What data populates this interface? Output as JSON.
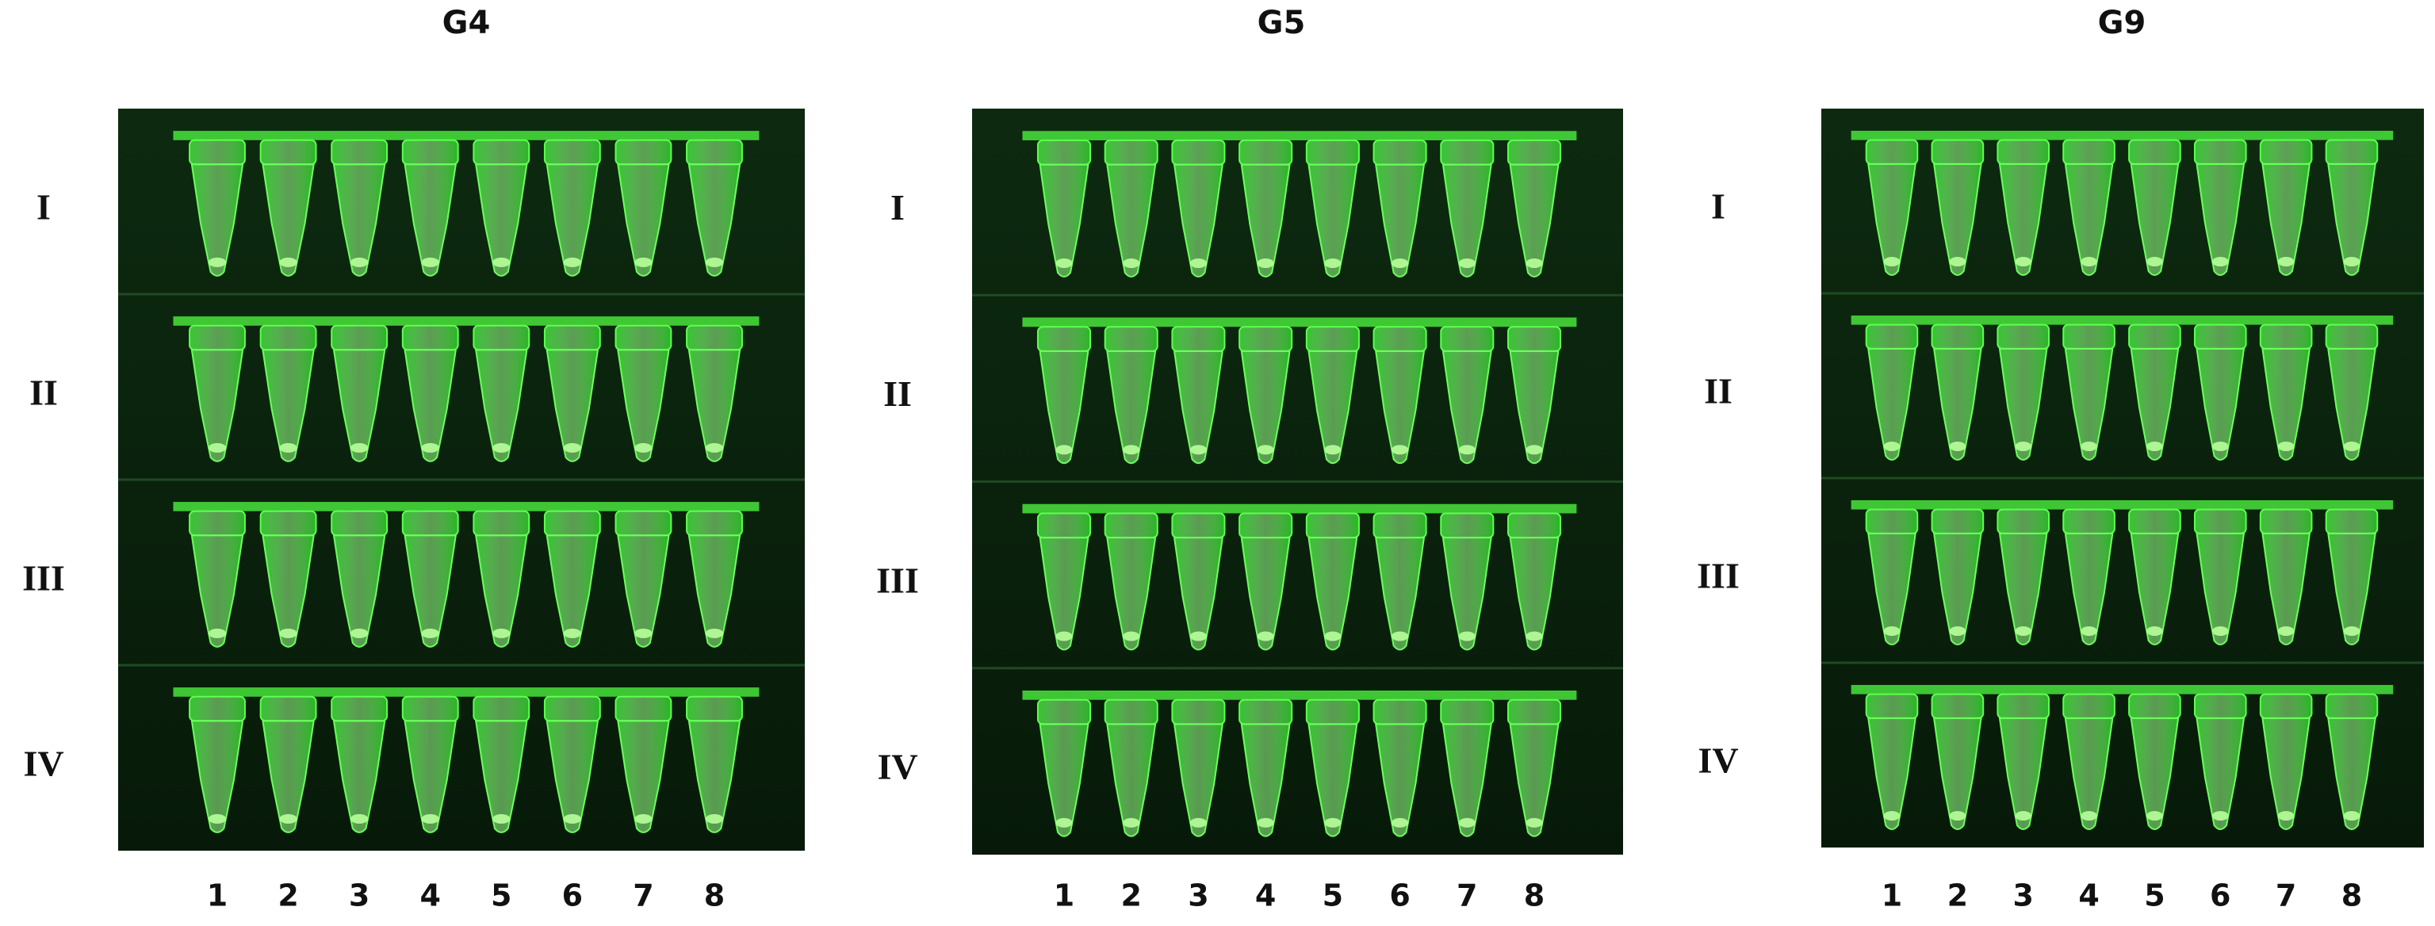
{
  "panels": [
    {
      "title": "G4",
      "rows": [
        "I",
        "II",
        "III",
        "IV"
      ],
      "columns": [
        "1",
        "2",
        "3",
        "4",
        "5",
        "6",
        "7",
        "8"
      ]
    },
    {
      "title": "G5",
      "rows": [
        "I",
        "II",
        "III",
        "IV"
      ],
      "columns": [
        "1",
        "2",
        "3",
        "4",
        "5",
        "6",
        "7",
        "8"
      ]
    },
    {
      "title": "G9",
      "rows": [
        "I",
        "II",
        "III",
        "IV"
      ],
      "columns": [
        "1",
        "2",
        "3",
        "4",
        "5",
        "6",
        "7",
        "8"
      ]
    }
  ]
}
